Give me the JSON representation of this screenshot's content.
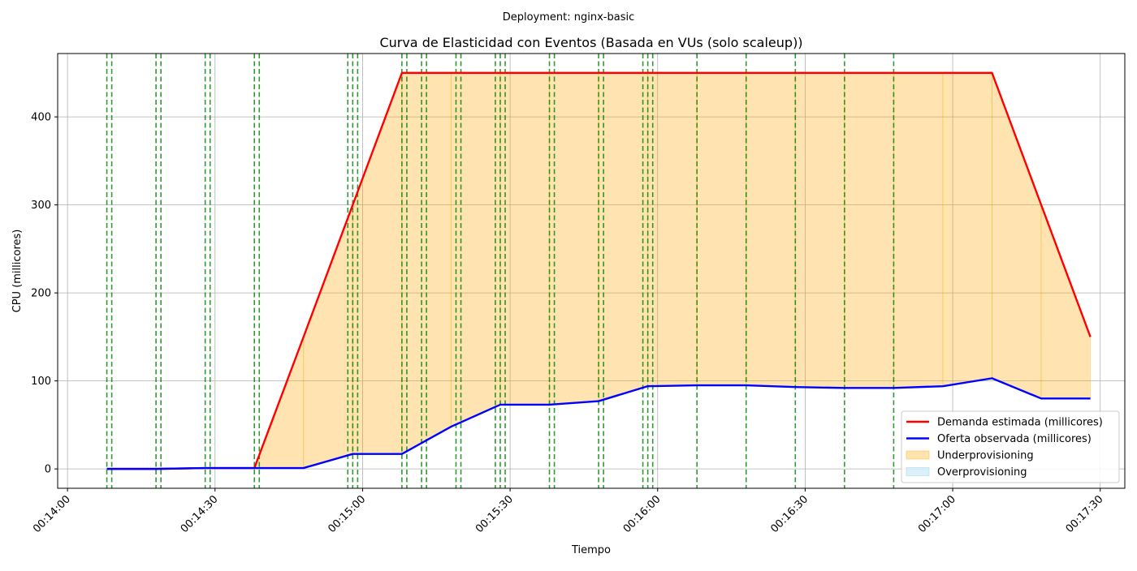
{
  "suptitle": "Deployment: nginx-basic",
  "chart_data": {
    "type": "line",
    "title": "Curva de Elasticidad con Eventos (Basada en VUs (solo scaleup))",
    "xlabel": "Tiempo",
    "ylabel": "CPU (millicores)",
    "xlim": [
      "00:13:58",
      "00:17:35"
    ],
    "ylim": [
      -22,
      472
    ],
    "x_ticks": [
      "00:14:00",
      "00:14:30",
      "00:15:00",
      "00:15:30",
      "00:16:00",
      "00:16:30",
      "00:17:00",
      "00:17:30"
    ],
    "y_ticks": [
      0,
      100,
      200,
      300,
      400
    ],
    "grid": true,
    "legend_position": "lower right",
    "series": [
      {
        "name": "Demanda estimada (millicores)",
        "color": "#ff0000",
        "points": [
          [
            "00:14:08",
            0
          ],
          [
            "00:14:18",
            0
          ],
          [
            "00:14:28",
            1
          ],
          [
            "00:14:38",
            1
          ],
          [
            "00:14:48",
            150
          ],
          [
            "00:14:58",
            300
          ],
          [
            "00:15:08",
            450
          ],
          [
            "00:15:18",
            450
          ],
          [
            "00:15:28",
            450
          ],
          [
            "00:15:38",
            450
          ],
          [
            "00:15:48",
            450
          ],
          [
            "00:15:58",
            450
          ],
          [
            "00:16:08",
            450
          ],
          [
            "00:16:18",
            450
          ],
          [
            "00:16:28",
            450
          ],
          [
            "00:16:38",
            450
          ],
          [
            "00:16:48",
            450
          ],
          [
            "00:16:58",
            450
          ],
          [
            "00:17:08",
            450
          ],
          [
            "00:17:18",
            300
          ],
          [
            "00:17:28",
            150
          ]
        ]
      },
      {
        "name": "Oferta observada (millicores)",
        "color": "#0000ff",
        "points": [
          [
            "00:14:08",
            0
          ],
          [
            "00:14:18",
            0
          ],
          [
            "00:14:28",
            1
          ],
          [
            "00:14:38",
            1
          ],
          [
            "00:14:48",
            1
          ],
          [
            "00:14:58",
            17
          ],
          [
            "00:15:08",
            17
          ],
          [
            "00:15:18",
            48
          ],
          [
            "00:15:28",
            73
          ],
          [
            "00:15:38",
            73
          ],
          [
            "00:15:48",
            77
          ],
          [
            "00:15:58",
            94
          ],
          [
            "00:16:08",
            95
          ],
          [
            "00:16:18",
            95
          ],
          [
            "00:16:28",
            93
          ],
          [
            "00:16:38",
            92
          ],
          [
            "00:16:48",
            92
          ],
          [
            "00:16:58",
            94
          ],
          [
            "00:17:08",
            103
          ],
          [
            "00:17:18",
            80
          ],
          [
            "00:17:28",
            80
          ]
        ]
      }
    ],
    "areas": [
      {
        "name": "Underprovisioning",
        "color": "#ffa500"
      },
      {
        "name": "Overprovisioning",
        "color": "#87ceeb"
      }
    ],
    "event_lines": [
      "00:14:08",
      "00:14:09",
      "00:14:18",
      "00:14:19",
      "00:14:28",
      "00:14:29",
      "00:14:38",
      "00:14:39",
      "00:14:57",
      "00:14:58",
      "00:14:59",
      "00:15:08",
      "00:15:09",
      "00:15:12",
      "00:15:13",
      "00:15:19",
      "00:15:20",
      "00:15:27",
      "00:15:28",
      "00:15:29",
      "00:15:38",
      "00:15:39",
      "00:15:48",
      "00:15:49",
      "00:15:57",
      "00:15:58",
      "00:15:59",
      "00:16:08",
      "00:16:18",
      "00:16:28",
      "00:16:38",
      "00:16:48"
    ],
    "event_line_color": "#008000"
  }
}
